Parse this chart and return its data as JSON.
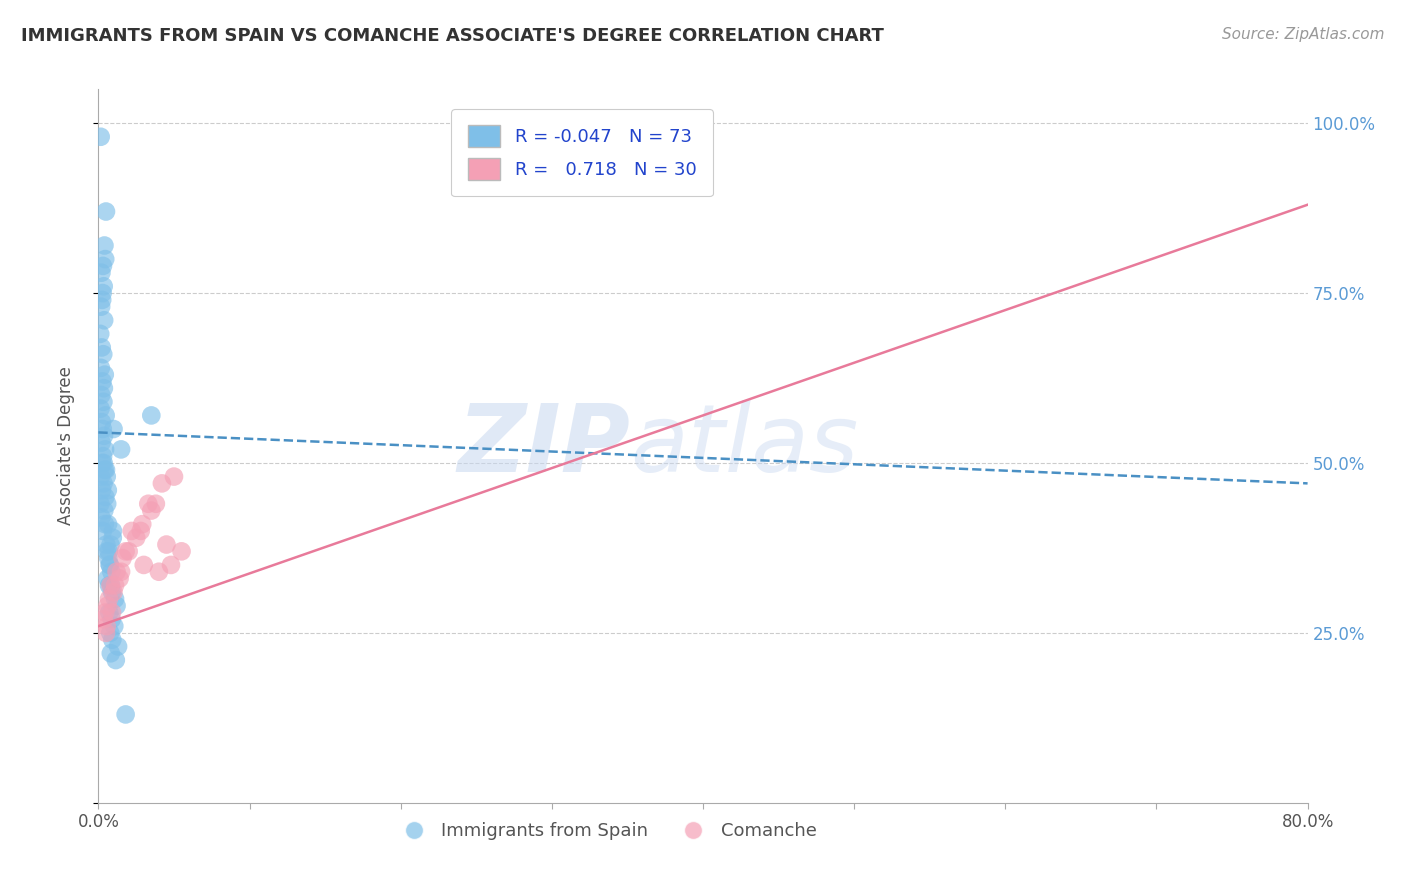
{
  "title": "IMMIGRANTS FROM SPAIN VS COMANCHE ASSOCIATE'S DEGREE CORRELATION CHART",
  "source": "Source: ZipAtlas.com",
  "ylabel": "Associate's Degree",
  "watermark": "ZIPatlas",
  "xmin": 0.0,
  "xmax": 80.0,
  "ymin": 0.0,
  "ymax": 105.0,
  "yticks_right": [
    25,
    50,
    75,
    100
  ],
  "ytick_labels_right": [
    "25.0%",
    "50.0%",
    "75.0%",
    "100.0%"
  ],
  "xticks": [
    0,
    10,
    20,
    30,
    40,
    50,
    60,
    70,
    80
  ],
  "blue_R": -0.047,
  "blue_N": 73,
  "pink_R": 0.718,
  "pink_N": 30,
  "blue_color": "#7fbfe8",
  "pink_color": "#f4a0b5",
  "blue_line_color": "#4a90c4",
  "pink_line_color": "#e87a9a",
  "legend1": "Immigrants from Spain",
  "legend2": "Comanche",
  "blue_scatter_x": [
    0.15,
    0.4,
    0.5,
    0.3,
    0.2,
    0.35,
    0.25,
    0.45,
    0.18,
    0.28,
    0.12,
    0.38,
    0.22,
    0.32,
    0.16,
    0.42,
    0.27,
    0.36,
    0.19,
    0.33,
    0.14,
    0.48,
    0.23,
    0.29,
    0.37,
    0.21,
    0.44,
    0.31,
    0.26,
    0.41,
    0.17,
    0.34,
    0.24,
    0.46,
    0.13,
    0.39,
    0.2,
    0.43,
    0.3,
    0.35,
    1.0,
    0.8,
    1.5,
    0.55,
    0.65,
    0.75,
    0.85,
    0.6,
    0.7,
    0.9,
    0.5,
    0.95,
    1.1,
    1.2,
    0.55,
    0.72,
    0.88,
    1.05,
    0.62,
    0.78,
    3.5,
    0.92,
    1.3,
    0.58,
    0.82,
    1.15,
    0.68,
    0.84,
    0.76,
    0.64,
    1.8,
    0.96,
    0.52
  ],
  "blue_scatter_y": [
    98,
    82,
    87,
    79,
    78,
    76,
    74,
    80,
    73,
    75,
    69,
    71,
    67,
    66,
    64,
    63,
    62,
    61,
    60,
    59,
    58,
    57,
    56,
    55,
    54,
    53,
    52,
    51,
    50,
    49,
    48,
    47,
    46,
    45,
    44,
    43,
    42,
    41,
    40,
    50,
    55,
    38,
    52,
    37,
    36,
    35,
    34,
    33,
    32,
    31,
    49,
    39,
    30,
    29,
    48,
    28,
    27,
    26,
    46,
    25,
    57,
    24,
    23,
    44,
    22,
    21,
    37,
    32,
    35,
    41,
    13,
    40,
    38
  ],
  "pink_scatter_x": [
    0.35,
    0.6,
    1.0,
    1.5,
    2.0,
    2.8,
    3.5,
    4.2,
    4.8,
    5.5,
    0.5,
    0.8,
    1.2,
    1.8,
    2.5,
    3.0,
    3.8,
    4.5,
    0.45,
    0.7,
    1.1,
    1.6,
    2.2,
    2.9,
    3.3,
    4.0,
    5.0,
    0.55,
    0.9,
    1.4
  ],
  "pink_scatter_y": [
    27,
    29,
    31,
    34,
    37,
    40,
    43,
    47,
    35,
    37,
    25,
    32,
    34,
    37,
    39,
    35,
    44,
    38,
    28,
    30,
    32,
    36,
    40,
    41,
    44,
    34,
    48,
    26,
    28,
    33
  ],
  "blue_trend_x": [
    0.0,
    80.0
  ],
  "blue_trend_y": [
    54.5,
    47.0
  ],
  "pink_trend_x": [
    0.0,
    80.0
  ],
  "pink_trend_y": [
    26.0,
    88.0
  ],
  "grid_color": "#cccccc",
  "spine_color": "#aaaaaa",
  "title_fontsize": 13,
  "source_fontsize": 11,
  "tick_fontsize": 12,
  "legend_fontsize": 13
}
